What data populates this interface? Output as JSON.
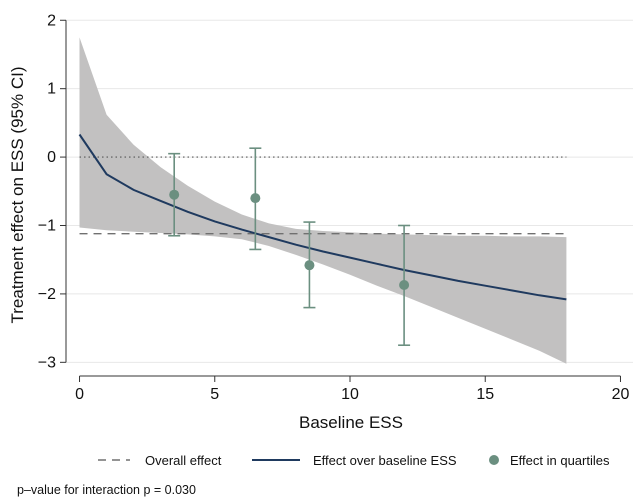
{
  "chart_data": {
    "type": "line",
    "title": "",
    "xlabel": "Baseline ESS",
    "ylabel": "Treatment effect on ESS (95% CI)",
    "xlim": [
      -0.5,
      20.5
    ],
    "ylim": [
      -3.2,
      2.15
    ],
    "xticks": [
      0,
      5,
      10,
      15,
      20
    ],
    "xtick_labels": [
      "0",
      "5",
      "10",
      "15",
      "20"
    ],
    "yticks": [
      -3,
      -2,
      -1,
      0,
      1,
      2
    ],
    "ytick_labels": [
      "−3",
      "−2",
      "−1",
      "0",
      "1",
      "2"
    ],
    "grid": true,
    "reference_line_y": 0,
    "overall_effect": {
      "name": "Overall effect",
      "y": -1.12,
      "x": [
        0,
        18
      ]
    },
    "effect_curve": {
      "name": "Effect over baseline ESS",
      "x": [
        0,
        1,
        2,
        3,
        4,
        5,
        6,
        7,
        8,
        9,
        10,
        11,
        12,
        13,
        14,
        15,
        16,
        17,
        18
      ],
      "y": [
        0.33,
        -0.25,
        -0.48,
        -0.64,
        -0.8,
        -0.94,
        -1.06,
        -1.17,
        -1.28,
        -1.38,
        -1.47,
        -1.56,
        -1.65,
        -1.73,
        -1.81,
        -1.88,
        -1.95,
        -2.02,
        -2.08
      ],
      "ci_lower": [
        -1.03,
        -1.07,
        -1.09,
        -1.11,
        -1.13,
        -1.16,
        -1.2,
        -1.3,
        -1.43,
        -1.57,
        -1.72,
        -1.88,
        -2.03,
        -2.19,
        -2.35,
        -2.51,
        -2.67,
        -2.83,
        -3.02
      ],
      "ci_upper": [
        1.75,
        0.62,
        0.18,
        -0.15,
        -0.42,
        -0.65,
        -0.84,
        -0.97,
        -1.05,
        -1.08,
        -1.1,
        -1.12,
        -1.13,
        -1.14,
        -1.15,
        -1.15,
        -1.16,
        -1.16,
        -1.17
      ]
    },
    "quartiles": {
      "name": "Effect in quartiles",
      "points": [
        {
          "x": 3.5,
          "y": -0.55,
          "lo": -1.15,
          "hi": 0.05
        },
        {
          "x": 6.5,
          "y": -0.6,
          "lo": -1.35,
          "hi": 0.13
        },
        {
          "x": 8.5,
          "y": -1.58,
          "lo": -2.2,
          "hi": -0.95
        },
        {
          "x": 12.0,
          "y": -1.87,
          "lo": -2.75,
          "hi": -1.0
        }
      ]
    },
    "legend_placement": "bottom",
    "legend": [
      "Overall effect",
      "Effect over baseline ESS",
      "Effect in quartiles"
    ],
    "note": "p–value for interaction p = 0.030",
    "colors": {
      "curve": "#1f3a5f",
      "band": "#c2c1c1",
      "quartile": "#6b8f80",
      "overall": "#707070",
      "reference": "#555555",
      "grid": "#e8e8e8"
    }
  }
}
